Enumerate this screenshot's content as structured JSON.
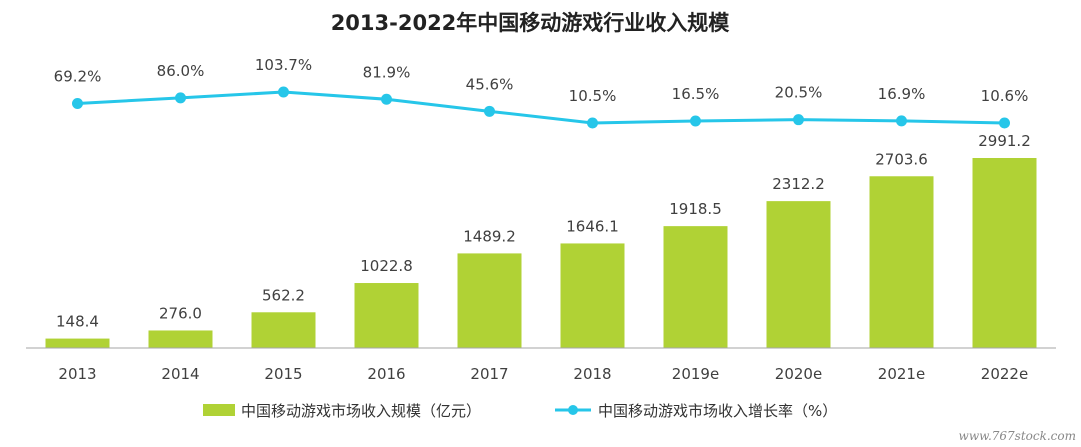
{
  "colors": {
    "bar": "#b0d235",
    "line": "#26c6e9",
    "axis": "#a6a6a6",
    "text": "#404040"
  },
  "watermark": "www.767stock.com",
  "chart_data": {
    "type": "bar",
    "title": "2013-2022年中国移动游戏行业收入规模",
    "categories": [
      "2013",
      "2014",
      "2015",
      "2016",
      "2017",
      "2018",
      "2019e",
      "2020e",
      "2021e",
      "2022e"
    ],
    "series": [
      {
        "name": "中国移动游戏市场收入规模（亿元）",
        "type": "bar",
        "values": [
          148.4,
          276.0,
          562.2,
          1022.8,
          1489.2,
          1646.1,
          1918.5,
          2312.2,
          2703.6,
          2991.2
        ],
        "labels": [
          "148.4",
          "276.0",
          "562.2",
          "1022.8",
          "1489.2",
          "1646.1",
          "1918.5",
          "2312.2",
          "2703.6",
          "2991.2"
        ]
      },
      {
        "name": "中国移动游戏市场收入增长率（%）",
        "type": "line",
        "values": [
          69.2,
          86.0,
          103.7,
          81.9,
          45.6,
          10.5,
          16.5,
          20.5,
          16.9,
          10.6
        ],
        "labels": [
          "69.2%",
          "86.0%",
          "103.7%",
          "81.9%",
          "45.6%",
          "10.5%",
          "16.5%",
          "20.5%",
          "16.9%",
          "10.6%"
        ]
      }
    ],
    "legend_position": "bottom-center",
    "grid": false
  }
}
